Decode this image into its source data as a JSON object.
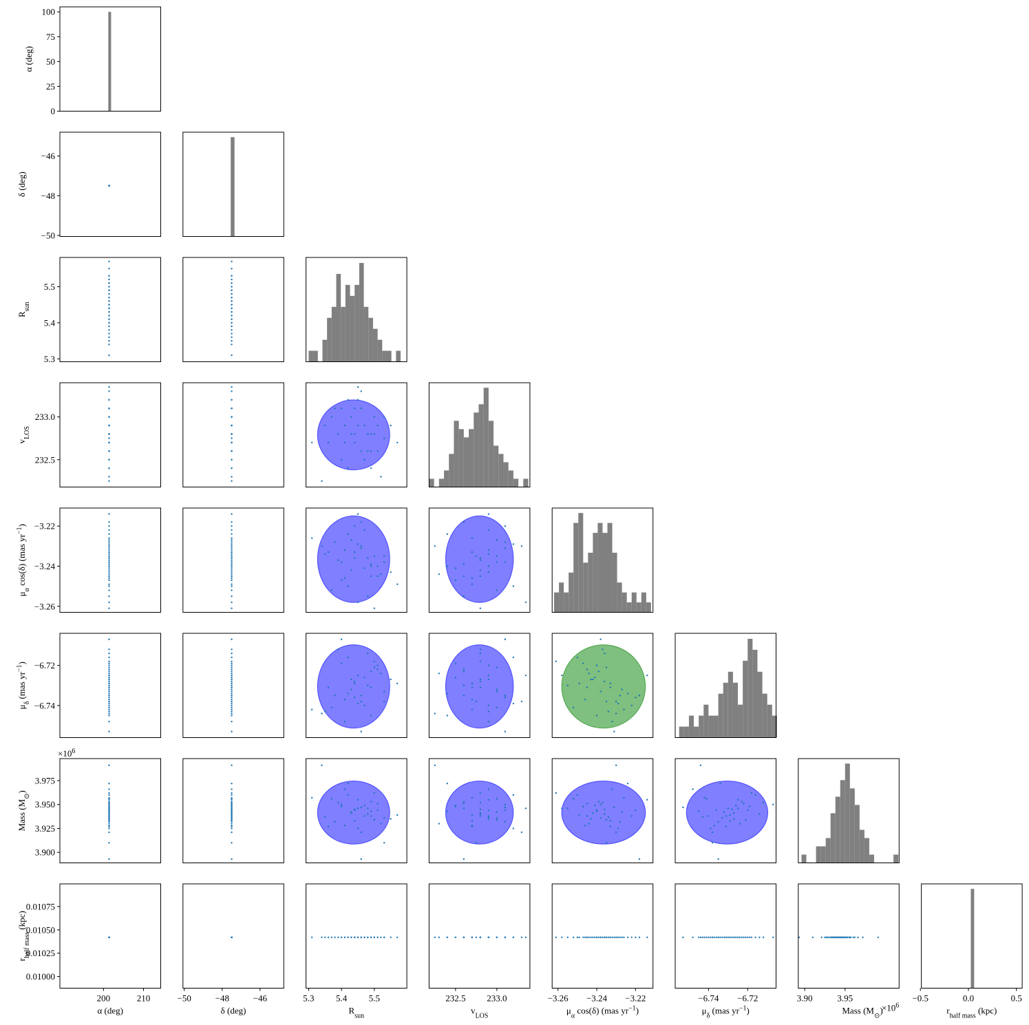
{
  "chart_data": {
    "type": "corner",
    "point_color": "#1f77b4",
    "hist_color": "#808080",
    "ellipse_color": "#0000ff",
    "highlight": {
      "x": 4,
      "y": 5,
      "color": "#008000"
    },
    "offset_text": [
      {
        "text": "×10"
      },
      {
        "sup": "6"
      }
    ],
    "params": [
      {
        "label": [
          {
            "text": "α (deg)"
          }
        ],
        "value": 201.4,
        "xlim": [
          189.1,
          214.3
        ],
        "xticks": [
          200,
          210
        ],
        "hist": {
          "bins": [
            201.2,
            201.9
          ],
          "counts": [
            100
          ],
          "ylim": [
            0,
            105
          ],
          "yticks": [
            0,
            25,
            50,
            75,
            100
          ]
        }
      },
      {
        "label": [
          {
            "text": "δ (deg)"
          }
        ],
        "value": -47.5,
        "xlim": [
          -50.07,
          -44.75
        ],
        "xticks": [
          {
            "value": -50,
            "label": "−50"
          },
          {
            "value": -48,
            "label": "−48"
          },
          {
            "value": -46,
            "label": "−46"
          }
        ],
        "ylim": [
          -50.05,
          -44.8
        ],
        "yticks": [
          {
            "value": -50,
            "label": "−50"
          },
          {
            "value": -48,
            "label": "−48"
          },
          {
            "value": -46,
            "label": "−46"
          }
        ],
        "hist": {
          "bins": [
            -47.55,
            -47.35
          ],
          "counts": [
            100
          ],
          "ylim": [
            0,
            105
          ]
        }
      },
      {
        "label": [
          {
            "text": "R"
          },
          {
            "sub": "sun"
          }
        ],
        "samples": [
          5.44,
          5.38,
          5.51,
          5.47,
          5.42,
          5.36,
          5.49,
          5.45,
          5.53,
          5.4,
          5.46,
          5.43,
          5.31,
          5.5,
          5.48,
          5.41,
          5.52,
          5.44,
          5.39,
          5.57,
          5.45,
          5.47,
          5.35,
          5.5,
          5.43,
          5.49,
          5.41,
          5.46,
          5.55,
          5.42,
          5.48,
          5.37,
          5.44,
          5.51,
          5.46,
          5.4,
          5.49,
          5.34,
          5.45,
          5.53
        ],
        "center": 5.437,
        "radius": 0.11,
        "xlim": [
          5.292,
          5.599
        ],
        "xticks": [
          5.3,
          5.4,
          5.5
        ],
        "ylim": [
          5.292,
          5.581
        ],
        "yticks": [
          5.3,
          5.4,
          5.5
        ],
        "hist": {
          "bins": [
            5.3,
            5.314,
            5.328,
            5.342,
            5.356,
            5.37,
            5.384,
            5.398,
            5.412,
            5.426,
            5.44,
            5.454,
            5.468,
            5.482,
            5.496,
            5.51,
            5.524,
            5.538,
            5.552,
            5.566,
            5.58
          ],
          "counts": [
            1,
            1,
            0,
            2,
            4,
            5,
            8,
            5,
            7,
            6,
            7,
            9,
            5,
            4,
            3,
            2,
            1,
            1,
            0,
            1
          ],
          "ylim": [
            0,
            9.5
          ]
        }
      },
      {
        "label": [
          {
            "text": "v"
          },
          {
            "sub": "LOS"
          }
        ],
        "samples": [
          232.8,
          233.1,
          232.6,
          232.9,
          233.2,
          232.7,
          232.4,
          232.9,
          233.0,
          232.5,
          233.3,
          232.8,
          232.7,
          233.0,
          232.6,
          232.9,
          232.3,
          233.1,
          232.8,
          232.7,
          233.2,
          232.5,
          232.9,
          232.8,
          233.0,
          232.6,
          232.7,
          233.1,
          232.9,
          232.4,
          232.8,
          233.0,
          232.7,
          232.9,
          232.6,
          233.1,
          232.8,
          232.25,
          233.35,
          232.75
        ],
        "center": 232.79,
        "radius": 0.41,
        "xlim": [
          232.18,
          233.4
        ],
        "xticks": [
          232.5,
          {
            "value": 233,
            "label": "233.0"
          }
        ],
        "ylim": [
          232.18,
          233.4
        ],
        "yticks": [
          232.5,
          {
            "value": 233,
            "label": "233.0"
          }
        ],
        "hist": {
          "bins": [
            232.18,
            232.24,
            232.3,
            232.36,
            232.42,
            232.48,
            232.54,
            232.6,
            232.66,
            232.72,
            232.78,
            232.84,
            232.9,
            232.96,
            233.02,
            233.08,
            233.14,
            233.2,
            233.26,
            233.32,
            233.38
          ],
          "counts": [
            1,
            0,
            1,
            2,
            4,
            8,
            7,
            6,
            7,
            9,
            10,
            12,
            8,
            5,
            4,
            3,
            2,
            1,
            0,
            1
          ],
          "ylim": [
            0,
            12.6
          ]
        }
      },
      {
        "label": [
          {
            "text": "μ"
          },
          {
            "sub": "α"
          },
          {
            "text": " cos(δ) (mas yr"
          },
          {
            "sup": "−1"
          },
          {
            "text": ")"
          }
        ],
        "samples": [
          -3.236,
          -3.228,
          -3.245,
          -3.222,
          -3.25,
          -3.233,
          -3.24,
          -3.214,
          -3.238,
          -3.247,
          -3.23,
          -3.242,
          -3.226,
          -3.235,
          -3.255,
          -3.232,
          -3.244,
          -3.22,
          -3.237,
          -3.249,
          -3.229,
          -3.241,
          -3.234,
          -3.261,
          -3.227,
          -3.239,
          -3.246,
          -3.231,
          -3.243,
          -3.224,
          -3.236,
          -3.252,
          -3.233,
          -3.24,
          -3.218,
          -3.238,
          -3.245,
          -3.23,
          -3.258,
          -3.235
        ],
        "center": -3.2365,
        "radius": 0.0216,
        "xlim": [
          -3.263,
          -3.211
        ],
        "xticks": [
          {
            "value": -3.26,
            "label": "−3.26"
          },
          {
            "value": -3.24,
            "label": "−3.24"
          },
          {
            "value": -3.22,
            "label": "−3.22"
          }
        ],
        "ylim": [
          -3.263,
          -3.211
        ],
        "yticks": [
          {
            "value": -3.26,
            "label": "−3.26"
          },
          {
            "value": -3.24,
            "label": "−3.24"
          },
          {
            "value": -3.22,
            "label": "−3.22"
          }
        ],
        "hist": {
          "bins": [
            -3.262,
            -3.2595,
            -3.257,
            -3.2545,
            -3.252,
            -3.2495,
            -3.247,
            -3.2445,
            -3.242,
            -3.2395,
            -3.237,
            -3.2345,
            -3.232,
            -3.2295,
            -3.227,
            -3.2245,
            -3.222,
            -3.2195,
            -3.217,
            -3.2145,
            -3.212
          ],
          "counts": [
            2,
            3,
            2,
            4,
            9,
            10,
            5,
            6,
            8,
            9,
            8,
            9,
            6,
            3,
            2,
            1,
            2,
            1,
            2,
            1
          ],
          "ylim": [
            0,
            10.5
          ]
        }
      },
      {
        "label": [
          {
            "text": "μ"
          },
          {
            "sub": "δ"
          },
          {
            "text": " (mas yr"
          },
          {
            "sup": "−1"
          },
          {
            "text": ")"
          }
        ],
        "samples": [
          -6.728,
          -6.735,
          -6.722,
          -6.74,
          -6.716,
          -6.731,
          -6.745,
          -6.725,
          -6.733,
          -6.719,
          -6.738,
          -6.727,
          -6.742,
          -6.721,
          -6.73,
          -6.748,
          -6.724,
          -6.736,
          -6.712,
          -6.729,
          -6.739,
          -6.726,
          -6.743,
          -6.718,
          -6.732,
          -6.723,
          -6.737,
          -6.753,
          -6.727,
          -6.734,
          -6.714,
          -6.741,
          -6.729,
          -6.72,
          -6.735,
          -6.707,
          -6.731,
          -6.744,
          -6.725,
          -6.738
        ],
        "center": -6.7305,
        "radius": 0.0208,
        "xlim": [
          -6.757,
          -6.7055
        ],
        "xticks": [
          {
            "value": -6.74,
            "label": "−6.74"
          },
          {
            "value": -6.72,
            "label": "−6.72"
          }
        ],
        "ylim": [
          -6.756,
          -6.704
        ],
        "yticks": [
          {
            "value": -6.74,
            "label": "−6.74"
          },
          {
            "value": -6.72,
            "label": "−6.72"
          }
        ],
        "hist": {
          "bins": [
            -6.755,
            -6.7525,
            -6.75,
            -6.7475,
            -6.745,
            -6.7425,
            -6.74,
            -6.7375,
            -6.735,
            -6.7325,
            -6.73,
            -6.7275,
            -6.725,
            -6.7225,
            -6.72,
            -6.7175,
            -6.715,
            -6.7125,
            -6.71,
            -6.7075,
            -6.705
          ],
          "counts": [
            1,
            1,
            2,
            1,
            2,
            3,
            2,
            2,
            4,
            5,
            6,
            5,
            3,
            7,
            9,
            8,
            6,
            4,
            3,
            2
          ],
          "ylim": [
            0,
            9.5
          ]
        }
      },
      {
        "label": [
          {
            "text": "Mass (M"
          },
          {
            "sub": "⊙"
          },
          {
            "text": ")"
          }
        ],
        "samples": [
          3.945,
          3.932,
          3.951,
          3.938,
          3.96,
          3.927,
          3.943,
          3.955,
          3.936,
          3.948,
          3.921,
          3.941,
          3.957,
          3.934,
          3.946,
          3.966,
          3.93,
          3.944,
          3.952,
          3.939,
          3.925,
          3.949,
          3.937,
          3.962,
          3.942,
          3.953,
          3.928,
          3.947,
          3.935,
          3.972,
          3.94,
          3.956,
          3.933,
          3.944,
          3.893,
          3.95,
          3.938,
          3.991,
          3.946,
          3.91
        ],
        "center": 3.9416,
        "radius": 0.033,
        "xlim": [
          3.892,
          4.017
        ],
        "xticks": [
          {
            "value": 3.9,
            "label": "3.90"
          },
          3.95
        ],
        "ylim": [
          3.889,
          3.998
        ],
        "yticks": [
          {
            "value": 3.9,
            "label": "3.900"
          },
          3.925,
          {
            "value": 3.95,
            "label": "3.950"
          },
          3.975
        ],
        "hist": {
          "bins": [
            3.896,
            3.902,
            3.908,
            3.914,
            3.92,
            3.926,
            3.932,
            3.938,
            3.944,
            3.95,
            3.956,
            3.962,
            3.968,
            3.974,
            3.98,
            3.986,
            3.992,
            3.998,
            4.004,
            4.01,
            4.016
          ],
          "counts": [
            1,
            0,
            0,
            2,
            2,
            3,
            6,
            8,
            10,
            12,
            9,
            7,
            4,
            3,
            1,
            0,
            0,
            0,
            0,
            1
          ],
          "ylim": [
            0,
            12.6
          ]
        }
      },
      {
        "label": [
          {
            "text": "r"
          },
          {
            "sub": "half mass"
          },
          {
            "text": " (kpc)"
          }
        ],
        "value": 0.01042,
        "xlim": [
          -0.49,
          0.56
        ],
        "xticks": [
          {
            "value": -0.5,
            "label": "−0.5"
          },
          {
            "value": 0,
            "label": "0.0"
          },
          0.5
        ],
        "ylim": [
          0.009875,
          0.010993
        ],
        "yticks": [
          {
            "value": 0.01,
            "label": "0.01000"
          },
          0.01025,
          {
            "value": 0.0105,
            "label": "0.01050"
          },
          0.01075
        ],
        "hist": {
          "bins": [
            0.025,
            0.06
          ],
          "counts": [
            100
          ],
          "ylim": [
            0,
            105
          ]
        }
      }
    ]
  }
}
